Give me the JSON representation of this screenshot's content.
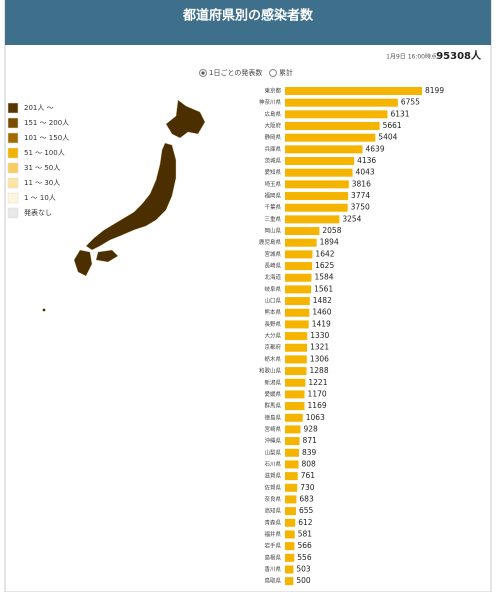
{
  "header": {
    "title": "都道府県別の感染者数"
  },
  "status": {
    "timestamp": "1月9日 16:00時点",
    "total": "95308人"
  },
  "options": [
    {
      "label": "1日ごとの発表数",
      "selected": true
    },
    {
      "label": "累計",
      "selected": false
    }
  ],
  "legend": {
    "items": [
      {
        "label": "201人 ～",
        "color": "#573600"
      },
      {
        "label": "151 ～ 200人",
        "color": "#7a4e00"
      },
      {
        "label": "101 ～ 150人",
        "color": "#a26c00"
      },
      {
        "label": "51 ～ 100人",
        "color": "#efb300"
      },
      {
        "label": "31 ～ 50人",
        "color": "#f8cd62"
      },
      {
        "label": "11 ～ 30人",
        "color": "#fde4a4"
      },
      {
        "label": "1 ～ 10人",
        "color": "#fff5dc"
      },
      {
        "label": "発表なし",
        "color": "#e8e8e8"
      }
    ]
  },
  "chart_data": {
    "type": "bar",
    "orientation": "horizontal",
    "color": "#f5b400",
    "categories": [
      "東京都",
      "神奈川県",
      "広島県",
      "大阪府",
      "静岡県",
      "兵庫県",
      "茨城県",
      "愛知県",
      "埼玉県",
      "福岡県",
      "千葉県",
      "三重県",
      "岡山県",
      "鹿児島県",
      "宮城県",
      "長崎県",
      "北海道",
      "岐阜県",
      "山口県",
      "熊本県",
      "長野県",
      "大分県",
      "京都府",
      "栃木県",
      "和歌山県",
      "新潟県",
      "愛媛県",
      "群馬県",
      "徳島県",
      "宮崎県",
      "沖縄県",
      "山梨県",
      "石川県",
      "滋賀県",
      "佐賀県",
      "奈良県",
      "高知県",
      "青森県",
      "福井県",
      "岩手県",
      "島根県",
      "香川県",
      "鳥取県"
    ],
    "values": [
      8199,
      6755,
      6131,
      5661,
      5404,
      4639,
      4136,
      4043,
      3816,
      3774,
      3750,
      3254,
      2058,
      1894,
      1642,
      1625,
      1584,
      1561,
      1482,
      1460,
      1419,
      1330,
      1321,
      1306,
      1288,
      1221,
      1170,
      1169,
      1063,
      928,
      871,
      839,
      808,
      761,
      730,
      683,
      655,
      612,
      581,
      566,
      556,
      503,
      500
    ]
  }
}
